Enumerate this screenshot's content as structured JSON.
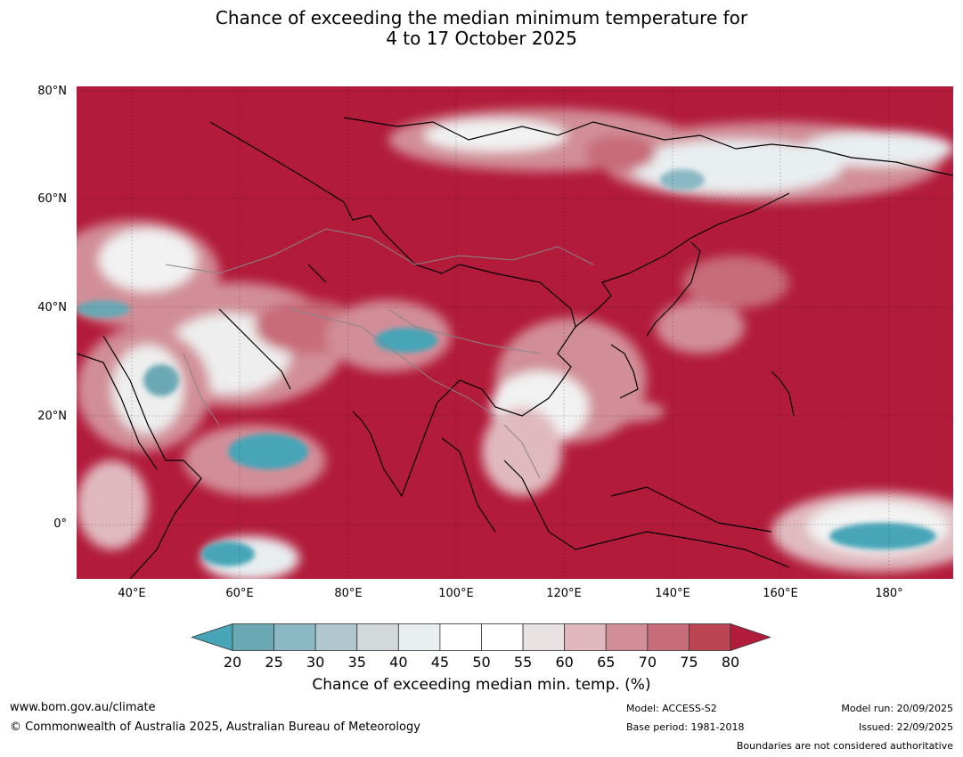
{
  "title_line1": "Chance of exceeding the median minimum temperature for",
  "title_line2": "4 to 17 October 2025",
  "lat_labels": [
    "80°N",
    "60°N",
    "40°N",
    "20°N",
    "0°"
  ],
  "lon_labels": [
    "40°E",
    "60°E",
    "80°E",
    "100°E",
    "120°E",
    "140°E",
    "160°E",
    "180°"
  ],
  "colorbar": {
    "ticks": [
      "20",
      "25",
      "30",
      "35",
      "40",
      "45",
      "50",
      "55",
      "60",
      "65",
      "70",
      "75",
      "80"
    ],
    "colors": [
      "#6aa8b4",
      "#8ab8c4",
      "#b0c8cd",
      "#d3d8db",
      "#e9eef0",
      "#ffffff",
      "#ffffff",
      "#e8e2e3",
      "#e0b9bf",
      "#d28e98",
      "#c76c78",
      "#bb4552"
    ],
    "low_color": "#47a5b7",
    "high_color": "#b21b3a",
    "label": "Chance of exceeding median min. temp. (%)"
  },
  "footer": {
    "url": "www.bom.gov.au/climate",
    "copyright": "© Commonwealth of Australia 2025, Australian Bureau of Meteorology",
    "model": "Model: ACCESS-S2",
    "base_period": "Base period: 1981-2018",
    "model_run": "Model run: 20/09/2025",
    "issued": "Issued: 22/09/2025",
    "disclaimer": "Boundaries are not considered authoritative"
  }
}
